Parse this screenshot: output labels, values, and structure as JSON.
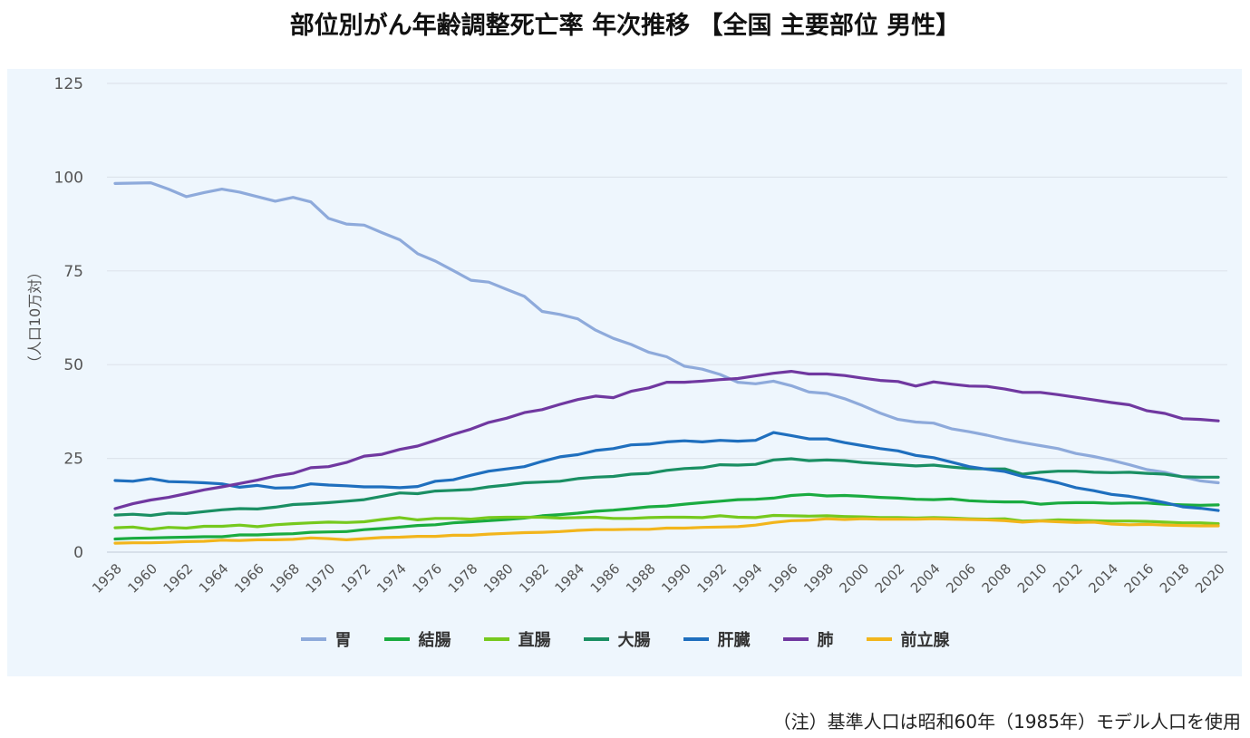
{
  "title": "部位別がん年齢調整死亡率 年次推移 【全国 主要部位 男性】",
  "note": "（注）基準人口は昭和60年（1985年）モデル人口を使用",
  "chart_data": {
    "type": "line",
    "title": "部位別がん年齢調整死亡率 年次推移 【全国 主要部位 男性】",
    "xlabel": "",
    "ylabel": "（人口10万対）",
    "ylim": [
      0,
      125
    ],
    "yticks": [
      "0",
      "25",
      "50",
      "75",
      "100",
      "125"
    ],
    "ytick_values": [
      0,
      25,
      50,
      75,
      100,
      125
    ],
    "grid": true,
    "legend_position": "bottom",
    "x": [
      1958,
      1959,
      1960,
      1961,
      1962,
      1963,
      1964,
      1965,
      1966,
      1967,
      1968,
      1969,
      1970,
      1971,
      1972,
      1973,
      1974,
      1975,
      1976,
      1977,
      1978,
      1979,
      1980,
      1981,
      1982,
      1983,
      1984,
      1985,
      1986,
      1987,
      1988,
      1989,
      1990,
      1991,
      1992,
      1993,
      1994,
      1995,
      1996,
      1997,
      1998,
      1999,
      2000,
      2001,
      2002,
      2003,
      2004,
      2005,
      2006,
      2007,
      2008,
      2009,
      2010,
      2011,
      2012,
      2013,
      2014,
      2015,
      2016,
      2017,
      2018,
      2019,
      2020
    ],
    "xtick_labels": [
      "1958",
      "1960",
      "1962",
      "1964",
      "1966",
      "1968",
      "1970",
      "1972",
      "1974",
      "1976",
      "1978",
      "1980",
      "1982",
      "1984",
      "1986",
      "1988",
      "1990",
      "1992",
      "1994",
      "1996",
      "1998",
      "2000",
      "2002",
      "2004",
      "2006",
      "2008",
      "2010",
      "2012",
      "2014",
      "2016",
      "2018",
      "2020"
    ],
    "series": [
      {
        "name": "胃",
        "color": "#8eaadb",
        "values": [
          98.3,
          98.4,
          98.5,
          96.8,
          94.8,
          95.9,
          96.8,
          96.0,
          94.8,
          93.6,
          94.6,
          93.4,
          89.0,
          87.5,
          87.2,
          85.2,
          83.3,
          79.6,
          77.6,
          75.1,
          72.5,
          72.0,
          70.1,
          68.2,
          64.2,
          63.4,
          62.2,
          59.2,
          57.0,
          55.4,
          53.3,
          52.1,
          49.6,
          48.8,
          47.4,
          45.3,
          44.9,
          45.6,
          44.4,
          42.7,
          42.3,
          40.9,
          39.1,
          37.1,
          35.4,
          34.7,
          34.4,
          32.9,
          32.1,
          31.2,
          30.1,
          29.2,
          28.4,
          27.6,
          26.3,
          25.5,
          24.5,
          23.3,
          22.0,
          21.3,
          20.1,
          19.0,
          18.5
        ]
      },
      {
        "name": "結腸",
        "color": "#1aab40",
        "values": [
          3.5,
          3.7,
          3.8,
          3.9,
          4.0,
          4.1,
          4.1,
          4.6,
          4.6,
          4.8,
          4.9,
          5.3,
          5.4,
          5.5,
          6.0,
          6.3,
          6.7,
          7.1,
          7.3,
          7.8,
          8.1,
          8.4,
          8.7,
          9.1,
          9.7,
          10.0,
          10.4,
          10.9,
          11.2,
          11.6,
          12.1,
          12.3,
          12.8,
          13.2,
          13.6,
          14.0,
          14.1,
          14.4,
          15.1,
          15.4,
          15.0,
          15.1,
          14.9,
          14.6,
          14.4,
          14.1,
          14.0,
          14.2,
          13.7,
          13.5,
          13.4,
          13.4,
          12.8,
          13.1,
          13.2,
          13.2,
          13.0,
          13.1,
          13.1,
          12.8,
          12.6,
          12.5,
          12.6
        ]
      },
      {
        "name": "直腸",
        "color": "#76c91e",
        "values": [
          6.5,
          6.7,
          6.1,
          6.6,
          6.4,
          6.9,
          6.9,
          7.2,
          6.8,
          7.3,
          7.6,
          7.8,
          8.0,
          7.9,
          8.1,
          8.7,
          9.2,
          8.6,
          9.0,
          9.0,
          8.8,
          9.2,
          9.3,
          9.3,
          9.3,
          9.1,
          9.2,
          9.3,
          9.0,
          9.0,
          9.2,
          9.3,
          9.3,
          9.2,
          9.7,
          9.3,
          9.2,
          9.8,
          9.7,
          9.6,
          9.7,
          9.5,
          9.4,
          9.2,
          9.2,
          9.1,
          9.2,
          9.1,
          8.9,
          8.8,
          8.9,
          8.3,
          8.4,
          8.6,
          8.5,
          8.4,
          8.3,
          8.3,
          8.2,
          8.0,
          7.8,
          7.8,
          7.6
        ]
      },
      {
        "name": "大腸",
        "color": "#1a8f63",
        "values": [
          9.9,
          10.1,
          9.8,
          10.4,
          10.3,
          10.8,
          11.3,
          11.6,
          11.5,
          12.0,
          12.7,
          12.9,
          13.2,
          13.6,
          14.0,
          14.9,
          15.8,
          15.6,
          16.3,
          16.5,
          16.7,
          17.4,
          17.9,
          18.5,
          18.7,
          18.9,
          19.6,
          20.0,
          20.2,
          20.8,
          21.0,
          21.8,
          22.3,
          22.5,
          23.3,
          23.2,
          23.4,
          24.6,
          24.9,
          24.4,
          24.6,
          24.4,
          23.9,
          23.6,
          23.3,
          23.0,
          23.2,
          22.7,
          22.3,
          22.2,
          22.2,
          20.8,
          21.3,
          21.6,
          21.6,
          21.3,
          21.2,
          21.3,
          21.0,
          20.8,
          20.1,
          20.0,
          20.0
        ]
      },
      {
        "name": "肝臓",
        "color": "#1f6fbe",
        "values": [
          19.1,
          18.9,
          19.6,
          18.8,
          18.7,
          18.5,
          18.2,
          17.3,
          17.8,
          17.1,
          17.2,
          18.2,
          17.9,
          17.7,
          17.4,
          17.4,
          17.2,
          17.5,
          18.9,
          19.3,
          20.5,
          21.6,
          22.2,
          22.8,
          24.2,
          25.4,
          26.0,
          27.1,
          27.6,
          28.6,
          28.8,
          29.4,
          29.7,
          29.4,
          29.8,
          29.6,
          29.8,
          31.9,
          31.1,
          30.2,
          30.2,
          29.2,
          28.4,
          27.6,
          27.0,
          25.8,
          25.2,
          24.0,
          22.8,
          22.1,
          21.5,
          20.2,
          19.5,
          18.5,
          17.2,
          16.4,
          15.4,
          14.9,
          14.1,
          13.2,
          12.1,
          11.7,
          11.1
        ]
      },
      {
        "name": "肺",
        "color": "#7038a0",
        "values": [
          11.6,
          12.9,
          13.9,
          14.6,
          15.6,
          16.6,
          17.4,
          18.3,
          19.2,
          20.3,
          21.0,
          22.5,
          22.8,
          23.9,
          25.6,
          26.1,
          27.4,
          28.3,
          29.8,
          31.4,
          32.8,
          34.6,
          35.7,
          37.2,
          38.0,
          39.4,
          40.7,
          41.6,
          41.2,
          42.9,
          43.8,
          45.3,
          45.3,
          45.6,
          46.0,
          46.3,
          47.0,
          47.7,
          48.2,
          47.5,
          47.5,
          47.1,
          46.4,
          45.8,
          45.5,
          44.3,
          45.4,
          44.8,
          44.3,
          44.2,
          43.5,
          42.6,
          42.6,
          42.0,
          41.3,
          40.6,
          39.9,
          39.3,
          37.7,
          37.0,
          35.6,
          35.4,
          35.0
        ]
      },
      {
        "name": "前立腺",
        "color": "#f2b51c",
        "values": [
          2.4,
          2.5,
          2.5,
          2.6,
          2.8,
          2.9,
          3.2,
          3.1,
          3.3,
          3.3,
          3.4,
          3.8,
          3.6,
          3.3,
          3.6,
          3.9,
          4.0,
          4.2,
          4.2,
          4.5,
          4.5,
          4.8,
          5.0,
          5.2,
          5.3,
          5.5,
          5.8,
          6.0,
          6.0,
          6.1,
          6.1,
          6.4,
          6.4,
          6.6,
          6.7,
          6.8,
          7.2,
          7.9,
          8.4,
          8.5,
          8.9,
          8.7,
          8.9,
          8.8,
          8.8,
          8.8,
          8.9,
          8.8,
          8.7,
          8.6,
          8.4,
          8.0,
          8.3,
          8.1,
          7.9,
          8.0,
          7.5,
          7.3,
          7.4,
          7.2,
          7.1,
          7.0,
          7.0
        ]
      }
    ]
  }
}
